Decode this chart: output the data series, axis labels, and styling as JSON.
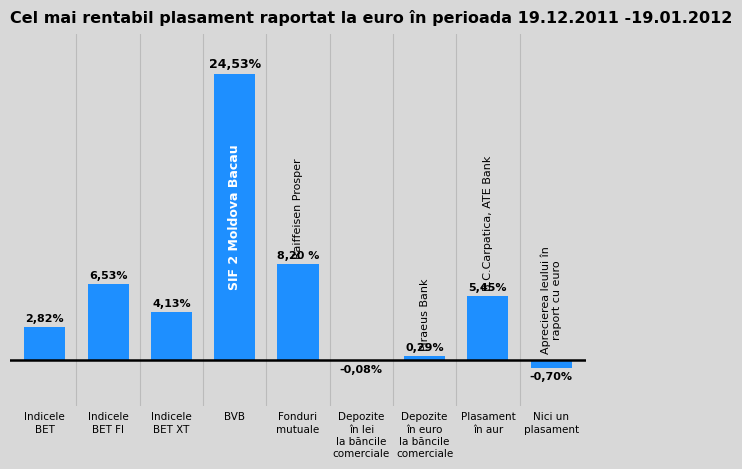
{
  "title": "Cel mai rentabil plasament raportat la euro în perioada 19.12.2011 -19.01.2012",
  "categories": [
    "Indicele\nBET",
    "Indicele\nBET FI",
    "Indicele\nBET XT",
    "BVB",
    "Fonduri\nmutuale",
    "Depozite\nîn lei\nla băncile\ncomerciale",
    "Depozite\nîn euro\nla băncile\ncomerciale",
    "Plasament\nîn aur",
    "Nici un\nplasament"
  ],
  "values": [
    2.82,
    6.53,
    4.13,
    24.53,
    8.2,
    -0.08,
    0.29,
    5.45,
    -0.7
  ],
  "bar_labels": [
    "2,82%",
    "6,53%",
    "4,13%",
    "24,53%",
    "8,20 %",
    "-0,08%",
    "0,29%",
    "5,45%",
    "-0,70%"
  ],
  "bar_color": "#1e8fff",
  "background_color": "#d8d8d8",
  "plot_bg_color": "#d8d8d8",
  "title_fontsize": 11.5,
  "ylim": [
    -4,
    28
  ],
  "rotated_labels": [
    {
      "bar_idx": 3,
      "text": "SIF 2 Moldova Bacau",
      "inside": true,
      "color": "white",
      "fontsize": 9,
      "fontweight": "bold"
    },
    {
      "bar_idx": 4,
      "text": "Raiffeisen Prosper",
      "inside": false,
      "color": "black",
      "fontsize": 8,
      "fontweight": "normal"
    },
    {
      "bar_idx": 6,
      "text": "Piraeus Bank",
      "inside": false,
      "color": "black",
      "fontsize": 8,
      "fontweight": "normal"
    },
    {
      "bar_idx": 7,
      "text": "B.C.Carpatica, ATE Bank",
      "inside": false,
      "color": "black",
      "fontsize": 8,
      "fontweight": "normal"
    },
    {
      "bar_idx": 8,
      "text": "Aprecierea leului în\nraport cu euro",
      "inside": false,
      "color": "black",
      "fontsize": 8,
      "fontweight": "normal"
    }
  ]
}
